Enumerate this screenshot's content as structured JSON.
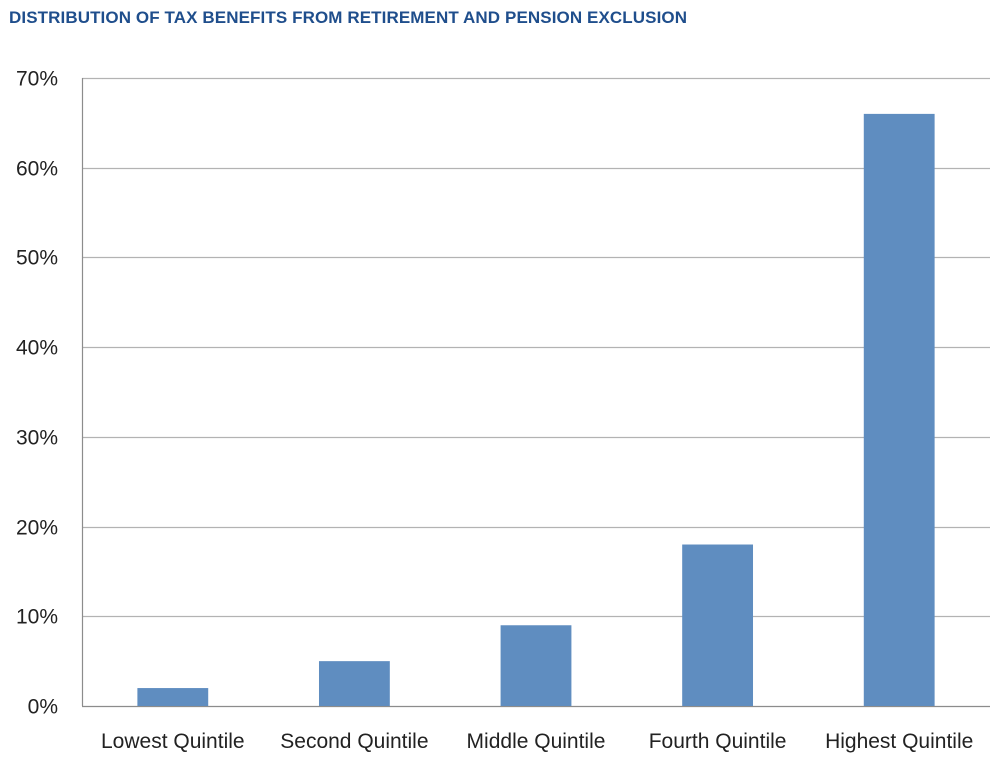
{
  "chart_data": {
    "type": "bar",
    "title": "DISTRIBUTION OF TAX BENEFITS FROM RETIREMENT AND PENSION EXCLUSION",
    "xlabel": "",
    "ylabel": "",
    "categories": [
      "Lowest Quintile",
      "Second Quintile",
      "Middle Quintile",
      "Fourth Quintile",
      "Highest Quintile"
    ],
    "values": [
      2,
      5,
      9,
      18,
      66
    ],
    "ylim": [
      0,
      70
    ],
    "yticks": [
      0,
      10,
      20,
      30,
      40,
      50,
      60,
      70
    ],
    "ytick_labels": [
      "0%",
      "10%",
      "20%",
      "30%",
      "40%",
      "50%",
      "60%",
      "70%"
    ],
    "grid": true,
    "legend": "none",
    "bar_color": "#5f8dc0",
    "title_color": "#1f4e8c"
  }
}
